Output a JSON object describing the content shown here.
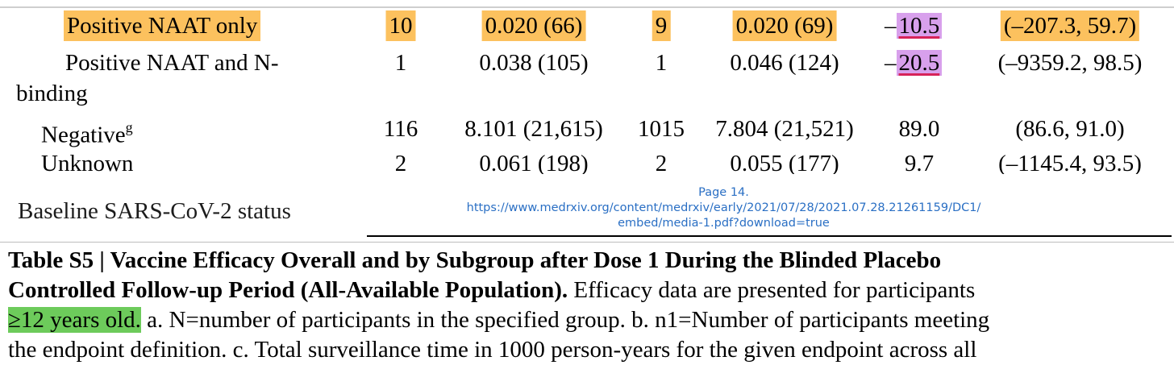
{
  "table": {
    "rows": [
      {
        "label": "Positive NAAT only",
        "n1_vaccine": "10",
        "rate_vaccine": "0.020 (66)",
        "n1_placebo": "9",
        "rate_placebo": "0.020 (69)",
        "ve_sign": "–",
        "ve_value": "10.5",
        "ci": "(–207.3, 59.7)"
      },
      {
        "label_line1": "Positive NAAT and N-",
        "label_line2": "binding",
        "n1_vaccine": "1",
        "rate_vaccine": "0.038 (105)",
        "n1_placebo": "1",
        "rate_placebo": "0.046 (124)",
        "ve_sign": "–",
        "ve_value": "20.5",
        "ci": "(–9359.2, 98.5)"
      },
      {
        "label": "Negative",
        "label_sup": "g",
        "n1_vaccine": "116",
        "rate_vaccine": "8.101 (21,615)",
        "n1_placebo": "1015",
        "rate_placebo": "7.804 (21,521)",
        "ve": "89.0",
        "ci": "(86.6, 91.0)"
      },
      {
        "label": "Unknown",
        "n1_vaccine": "2",
        "rate_vaccine": "0.061 (198)",
        "n1_placebo": "2",
        "rate_placebo": "0.055 (177)",
        "ve": "9.7",
        "ci": "(–1145.4, 93.5)"
      }
    ]
  },
  "overlay": {
    "baseline_label": "Baseline SARS-CoV-2 status",
    "page_label": "Page 14.",
    "url_line1": "https://www.medrxiv.org/content/medrxiv/early/2021/07/28/2021.07.28.21261159/DC1/",
    "url_line2": "embed/media-1.pdf?download=true"
  },
  "caption": {
    "title_line1": "Table S5 | Vaccine Efficacy Overall and by Subgroup after Dose 1 During the Blinded Placebo",
    "title_line2_bold": "Controlled Follow-up Period (All-Available Population).",
    "title_line2_rest": " Efficacy data are presented for participants",
    "line3_highlight": "≥12 years old.",
    "line3_rest": " a. N=number of participants in the specified group. b. n1=Number of participants meeting",
    "line4_partial": "the endpoint definition.   c. Total surveillance time in 1000 person-years for the given endpoint across all"
  },
  "colors": {
    "orange_highlight": "#fcc15e",
    "purple_highlight": "#d8a0ec",
    "red_underline": "#d6235a",
    "green_highlight": "#6dcb5b",
    "link_blue": "#2a6fc4"
  }
}
